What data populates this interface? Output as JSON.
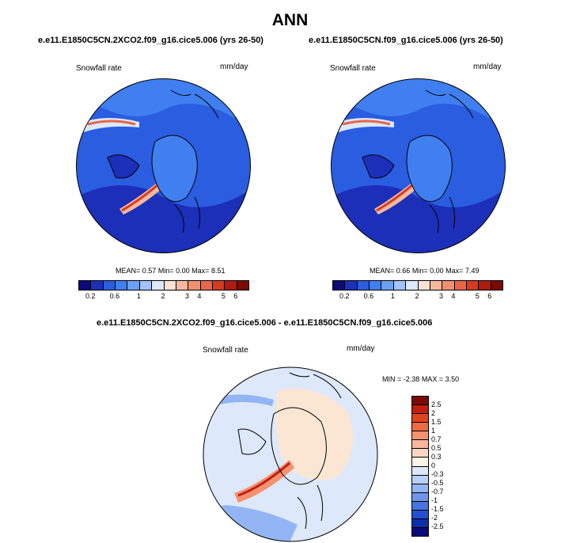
{
  "title": "ANN",
  "top_panels": [
    {
      "case": "e.e11.E1850C5CN.2XCO2.f09_g16.cice5.006 (yrs 26-50)",
      "variable": "Snowfall rate",
      "units": "mm/day",
      "mean_label": "MEAN=",
      "mean": "0.57",
      "min_label": "Min=",
      "min": "0.00",
      "max_label": "Max=",
      "max": "8.51"
    },
    {
      "case": "e.e11.E1850C5CN.f09_g16.cice5.006 (yrs 26-50)",
      "variable": "Snowfall rate",
      "units": "mm/day",
      "mean_label": "MEAN=",
      "mean": "0.66",
      "min_label": "Min=",
      "min": "0.00",
      "max_label": "Max=",
      "max": "7.49"
    }
  ],
  "diff_panel": {
    "case": "e.e11.E1850C5CN.2XCO2.f09_g16.cice5.006 - e.e11.E1850C5CN.f09_g16.cice5.006",
    "variable": "Snowfall rate",
    "units": "mm/day",
    "min_label": "MIN =",
    "min": "-2.38",
    "max_label": "MAX =",
    "max": "3.50"
  },
  "colorbar_top": {
    "colors": [
      "#0a0a7a",
      "#1c2fb8",
      "#2a5de0",
      "#3f7ff0",
      "#6d9ff5",
      "#a3c3fa",
      "#dbe8fd",
      "#fbe2d4",
      "#f6b99e",
      "#f1906e",
      "#ea6546",
      "#d93a22",
      "#b01a10",
      "#7a0a05"
    ],
    "tick_labels": [
      "0.2",
      "0.6",
      "1",
      "2",
      "3",
      "4",
      "5",
      "6"
    ]
  },
  "colorbar_diff": {
    "colors": [
      "#7a0a05",
      "#c21d10",
      "#e0441c",
      "#ef6a3e",
      "#f49270",
      "#f8b69c",
      "#fbd6c3",
      "#fff3e8",
      "#dde8fb",
      "#b9d0f8",
      "#93b5f3",
      "#6d96ec",
      "#4774e2",
      "#2450cf",
      "#112eaa",
      "#0a0a7a"
    ],
    "tick_labels": [
      "2.5",
      "2",
      "1.5",
      "1",
      "0.7",
      "0.5",
      "0.3",
      "0",
      "-0.3",
      "-0.5",
      "-0.7",
      "-1",
      "-1.5",
      "-2",
      "-2.5"
    ]
  }
}
